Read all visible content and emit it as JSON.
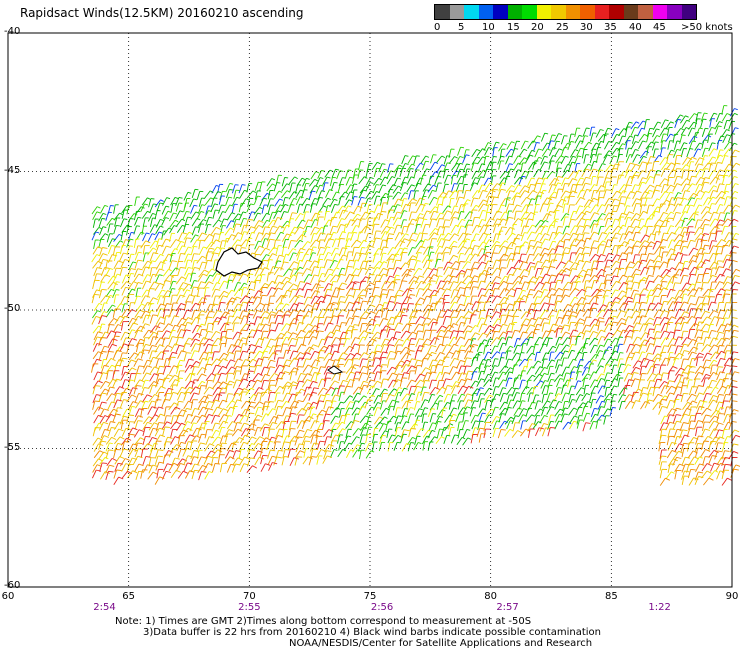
{
  "title": "Rapidsact Winds(12.5KM) 20160210 ascending",
  "legend": {
    "colors": [
      "#404040",
      "#9a9a9a",
      "#00d8f0",
      "#0060f0",
      "#0000c0",
      "#00b000",
      "#00dc00",
      "#f0f000",
      "#f0c800",
      "#f09000",
      "#f06000",
      "#e82020",
      "#b00000",
      "#6a3b1b",
      "#c06040",
      "#f000f0",
      "#8800c0",
      "#400080"
    ],
    "labels": [
      "0",
      "5",
      "10",
      "15",
      "20",
      "25",
      "30",
      "35",
      "40",
      "45",
      ">50 knots"
    ]
  },
  "chart_data": {
    "type": "wind-barb",
    "title": "Rapidsact Winds(12.5KM) 20160210 ascending",
    "xlim": [
      60,
      90
    ],
    "ylim": [
      -60,
      -40
    ],
    "x_ticks": [
      "60",
      "65",
      "70",
      "75",
      "80",
      "85",
      "90"
    ],
    "y_ticks": [
      "-40",
      "-45",
      "-50",
      "-55",
      "-60"
    ],
    "grid": true,
    "time_ticks": [
      {
        "x": 64,
        "label": "2:54"
      },
      {
        "x": 70,
        "label": "2:55"
      },
      {
        "x": 75.5,
        "label": "2:56"
      },
      {
        "x": 80.7,
        "label": "2:57"
      },
      {
        "x": 87,
        "label": "1:22"
      }
    ],
    "speed_units": "knots",
    "speed_scale": [
      0,
      5,
      10,
      15,
      20,
      25,
      30,
      35,
      40,
      45,
      50
    ]
  },
  "notes": [
    "Note: 1) Times are GMT 2)Times along bottom correspond to measurement at -50S",
    "3)Data buffer is 22 hrs from 20160210 4) Black wind barbs indicate possible contamination",
    "NOAA/NESDIS/Center for Satellite Applications and Research"
  ]
}
